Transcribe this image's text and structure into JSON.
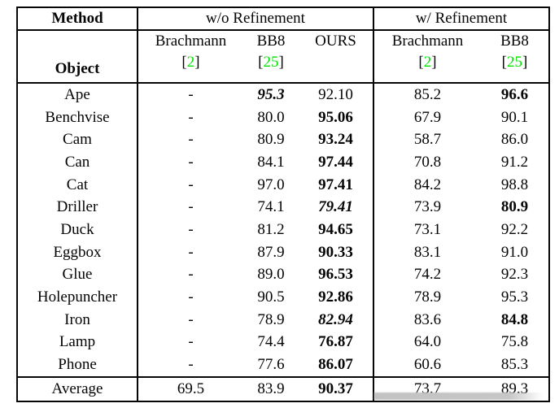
{
  "colors": {
    "citation_green": "#00e400",
    "table_border": "#060606",
    "text": "#050505",
    "shadow_artifact": "#c6c6c6",
    "background": "#ffffff"
  },
  "table": {
    "corner_header": "Method",
    "object_header": "Object",
    "groups": [
      {
        "label": "w/o Refinement",
        "columns": [
          {
            "name": "Brachmann",
            "cite": "[2]"
          },
          {
            "name": "BB8",
            "cite": "[25]"
          },
          {
            "name": "OURS",
            "cite": ""
          }
        ]
      },
      {
        "label": "w/ Refinement",
        "columns": [
          {
            "name": "Brachmann",
            "cite": "[2]"
          },
          {
            "name": "BB8",
            "cite": "[25]"
          }
        ]
      }
    ],
    "rows": [
      {
        "object": "Ape",
        "values": [
          "-",
          "95.3",
          "92.10",
          "85.2",
          "96.6"
        ],
        "styles": [
          "n",
          "bi",
          "n",
          "n",
          "b"
        ]
      },
      {
        "object": "Benchvise",
        "values": [
          "-",
          "80.0",
          "95.06",
          "67.9",
          "90.1"
        ],
        "styles": [
          "n",
          "n",
          "b",
          "n",
          "n"
        ]
      },
      {
        "object": "Cam",
        "values": [
          "-",
          "80.9",
          "93.24",
          "58.7",
          "86.0"
        ],
        "styles": [
          "n",
          "n",
          "b",
          "n",
          "n"
        ]
      },
      {
        "object": "Can",
        "values": [
          "-",
          "84.1",
          "97.44",
          "70.8",
          "91.2"
        ],
        "styles": [
          "n",
          "n",
          "b",
          "n",
          "n"
        ]
      },
      {
        "object": "Cat",
        "values": [
          "-",
          "97.0",
          "97.41",
          "84.2",
          "98.8"
        ],
        "styles": [
          "n",
          "n",
          "b",
          "n",
          "n"
        ]
      },
      {
        "object": "Driller",
        "values": [
          "-",
          "74.1",
          "79.41",
          "73.9",
          "80.9"
        ],
        "styles": [
          "n",
          "n",
          "bi",
          "n",
          "b"
        ]
      },
      {
        "object": "Duck",
        "values": [
          "-",
          "81.2",
          "94.65",
          "73.1",
          "92.2"
        ],
        "styles": [
          "n",
          "n",
          "b",
          "n",
          "n"
        ]
      },
      {
        "object": "Eggbox",
        "values": [
          "-",
          "87.9",
          "90.33",
          "83.1",
          "91.0"
        ],
        "styles": [
          "n",
          "n",
          "b",
          "n",
          "n"
        ]
      },
      {
        "object": "Glue",
        "values": [
          "-",
          "89.0",
          "96.53",
          "74.2",
          "92.3"
        ],
        "styles": [
          "n",
          "n",
          "b",
          "n",
          "n"
        ]
      },
      {
        "object": "Holepuncher",
        "values": [
          "-",
          "90.5",
          "92.86",
          "78.9",
          "95.3"
        ],
        "styles": [
          "n",
          "n",
          "b",
          "n",
          "n"
        ]
      },
      {
        "object": "Iron",
        "values": [
          "-",
          "78.9",
          "82.94",
          "83.6",
          "84.8"
        ],
        "styles": [
          "n",
          "n",
          "bi",
          "n",
          "b"
        ]
      },
      {
        "object": "Lamp",
        "values": [
          "-",
          "74.4",
          "76.87",
          "64.0",
          "75.8"
        ],
        "styles": [
          "n",
          "n",
          "b",
          "n",
          "n"
        ]
      },
      {
        "object": "Phone",
        "values": [
          "-",
          "77.6",
          "86.07",
          "60.6",
          "85.3"
        ],
        "styles": [
          "n",
          "n",
          "b",
          "n",
          "n"
        ]
      }
    ],
    "average_row": {
      "object": "Average",
      "values": [
        "69.5",
        "83.9",
        "90.37",
        "73.7",
        "89.3"
      ],
      "styles": [
        "n",
        "n",
        "b",
        "n",
        "n"
      ]
    }
  }
}
